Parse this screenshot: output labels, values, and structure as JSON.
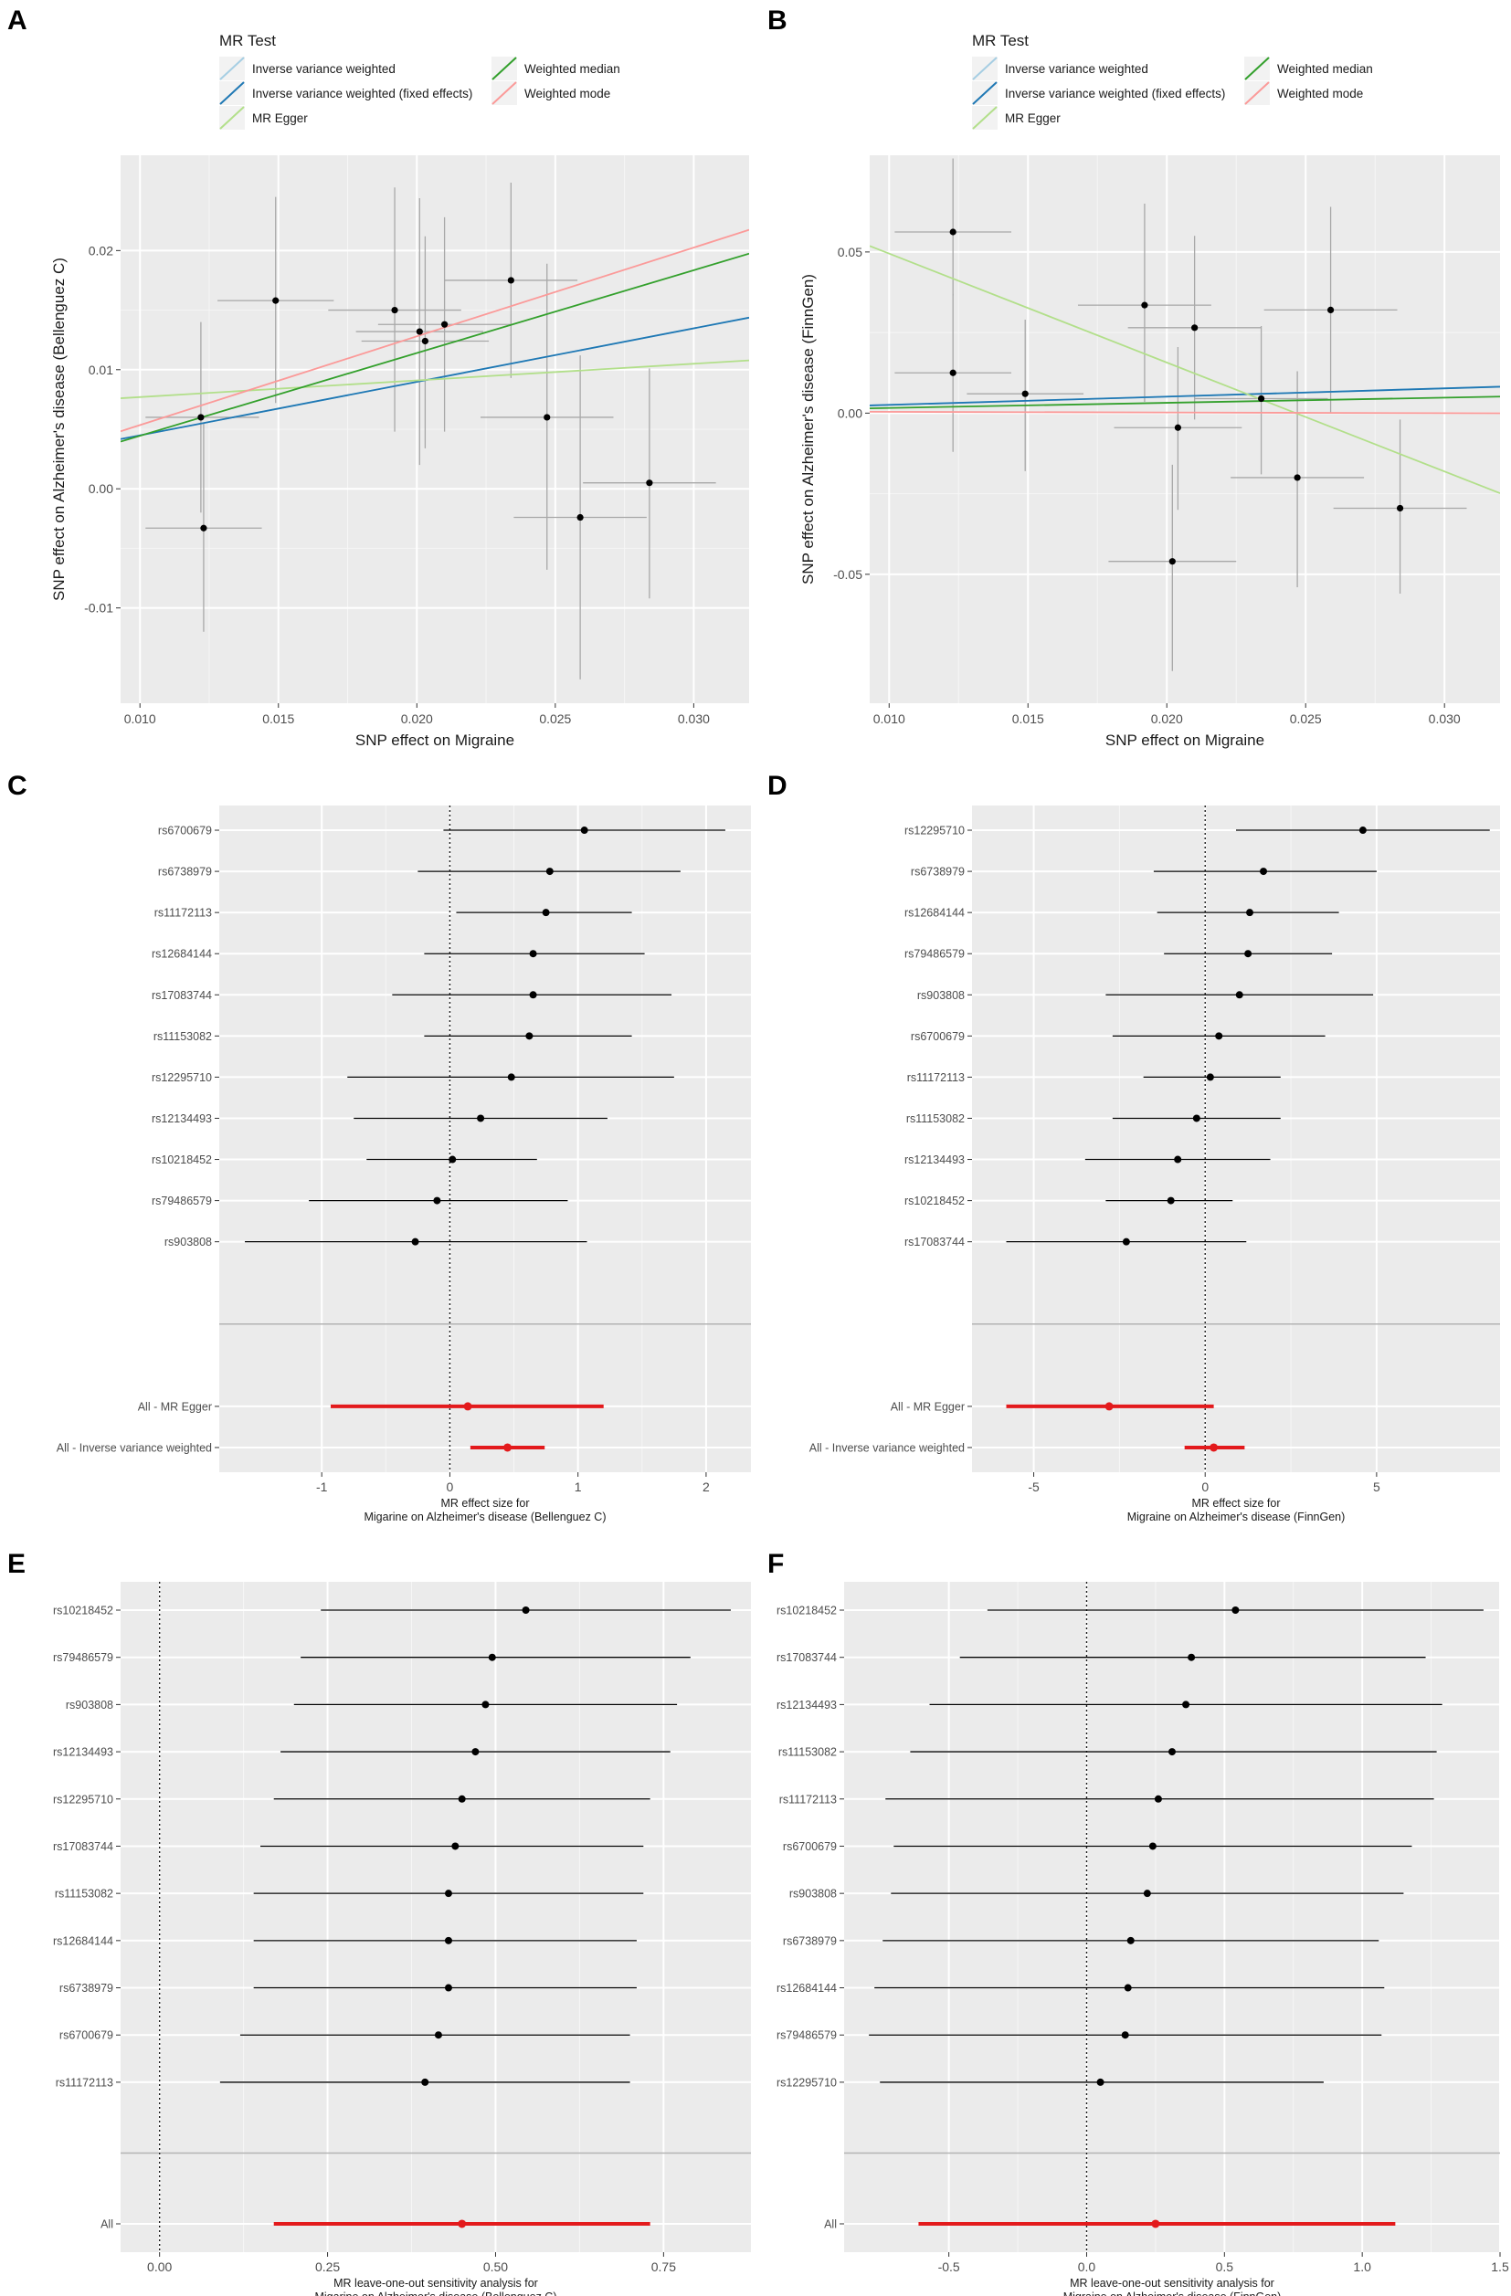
{
  "colors": {
    "panel_bg": "#ebebeb",
    "grid": "#ffffff",
    "ivw": "#a6cee3",
    "ivw_fixed": "#1f78b4",
    "egger": "#b2df8a",
    "wmedian": "#33a02c",
    "wmode": "#fb9a99",
    "point": "#000000",
    "errorbar_scatter": "#a8a8a8",
    "summary": "#e31a1c"
  },
  "legend": {
    "title": "MR Test",
    "entries": [
      {
        "key": "ivw",
        "label": "Inverse variance weighted"
      },
      {
        "key": "ivw_fixed",
        "label": "Inverse variance weighted (fixed effects)"
      },
      {
        "key": "egger",
        "label": "MR Egger"
      },
      {
        "key": "wmedian",
        "label": "Weighted median"
      },
      {
        "key": "wmode",
        "label": "Weighted mode"
      }
    ]
  },
  "chart_data": [
    {
      "panel": "A",
      "type": "scatter",
      "xlabel": "SNP effect on Migraine",
      "ylabel": "SNP effect on Alzheimer's disease (Bellenguez C)",
      "xlim": [
        0.0093,
        0.032
      ],
      "ylim": [
        -0.018,
        0.028
      ],
      "xticks": [
        0.01,
        0.015,
        0.02,
        0.025,
        0.03
      ],
      "xtick_labels": [
        "0.010",
        "0.015",
        "0.020",
        "0.025",
        "0.030"
      ],
      "yticks": [
        -0.01,
        0.0,
        0.01,
        0.02
      ],
      "ytick_labels": [
        "-0.01",
        "0.00",
        "0.01",
        "0.02"
      ],
      "points": [
        {
          "x": 0.0122,
          "y": 0.006,
          "xlo": 0.0102,
          "xhi": 0.0143,
          "ylo": -0.002,
          "yhi": 0.014
        },
        {
          "x": 0.0123,
          "y": -0.0033,
          "xlo": 0.0102,
          "xhi": 0.0144,
          "ylo": -0.012,
          "yhi": 0.0055
        },
        {
          "x": 0.0149,
          "y": 0.0158,
          "xlo": 0.0128,
          "xhi": 0.017,
          "ylo": 0.0072,
          "yhi": 0.0245
        },
        {
          "x": 0.0192,
          "y": 0.015,
          "xlo": 0.0168,
          "xhi": 0.0216,
          "ylo": 0.0048,
          "yhi": 0.0253
        },
        {
          "x": 0.0201,
          "y": 0.0132,
          "xlo": 0.0178,
          "xhi": 0.0224,
          "ylo": 0.002,
          "yhi": 0.0244
        },
        {
          "x": 0.0203,
          "y": 0.0124,
          "xlo": 0.018,
          "xhi": 0.0226,
          "ylo": 0.0034,
          "yhi": 0.0212
        },
        {
          "x": 0.021,
          "y": 0.0138,
          "xlo": 0.0186,
          "xhi": 0.0234,
          "ylo": 0.0048,
          "yhi": 0.0228
        },
        {
          "x": 0.0234,
          "y": 0.0175,
          "xlo": 0.021,
          "xhi": 0.0258,
          "ylo": 0.0093,
          "yhi": 0.0257
        },
        {
          "x": 0.0247,
          "y": 0.006,
          "xlo": 0.0223,
          "xhi": 0.0271,
          "ylo": -0.0068,
          "yhi": 0.0189
        },
        {
          "x": 0.0259,
          "y": -0.0024,
          "xlo": 0.0235,
          "xhi": 0.0283,
          "ylo": -0.016,
          "yhi": 0.0112
        },
        {
          "x": 0.0284,
          "y": 0.0005,
          "xlo": 0.026,
          "xhi": 0.0308,
          "ylo": -0.0092,
          "yhi": 0.0101
        }
      ],
      "lines": [
        {
          "key": "ivw",
          "intercept": 0.0,
          "slope": 0.449
        },
        {
          "key": "ivw_fixed",
          "intercept": 0.0,
          "slope": 0.449
        },
        {
          "key": "egger",
          "intercept": 0.0063,
          "slope": 0.14
        },
        {
          "key": "wmedian",
          "intercept": -0.0025,
          "slope": 0.695
        },
        {
          "key": "wmode",
          "intercept": -0.0021,
          "slope": 0.745
        }
      ]
    },
    {
      "panel": "B",
      "type": "scatter",
      "xlabel": "SNP effect on Migraine",
      "ylabel": "SNP effect on  Alzheimer's disease (FinnGen)",
      "xlim": [
        0.0093,
        0.032
      ],
      "ylim": [
        -0.09,
        0.08
      ],
      "xticks": [
        0.01,
        0.015,
        0.02,
        0.025,
        0.03
      ],
      "xtick_labels": [
        "0.010",
        "0.015",
        "0.020",
        "0.025",
        "0.030"
      ],
      "yticks": [
        -0.05,
        0.0,
        0.05
      ],
      "ytick_labels": [
        "-0.05",
        "0.00",
        "0.05"
      ],
      "points": [
        {
          "x": 0.0123,
          "y": 0.0562,
          "xlo": 0.0102,
          "xhi": 0.0144,
          "ylo": 0.0365,
          "yhi": 0.079
        },
        {
          "x": 0.0123,
          "y": 0.0125,
          "xlo": 0.0102,
          "xhi": 0.0144,
          "ylo": -0.012,
          "yhi": 0.037
        },
        {
          "x": 0.0149,
          "y": 0.006,
          "xlo": 0.0128,
          "xhi": 0.017,
          "ylo": -0.018,
          "yhi": 0.029
        },
        {
          "x": 0.0192,
          "y": 0.0335,
          "xlo": 0.0168,
          "xhi": 0.0216,
          "ylo": 0.0035,
          "yhi": 0.065
        },
        {
          "x": 0.0202,
          "y": -0.046,
          "xlo": 0.0179,
          "xhi": 0.0225,
          "ylo": -0.08,
          "yhi": -0.016
        },
        {
          "x": 0.0204,
          "y": -0.0045,
          "xlo": 0.0181,
          "xhi": 0.0227,
          "ylo": -0.03,
          "yhi": 0.0205
        },
        {
          "x": 0.021,
          "y": 0.0265,
          "xlo": 0.0186,
          "xhi": 0.0234,
          "ylo": -0.002,
          "yhi": 0.055
        },
        {
          "x": 0.0234,
          "y": 0.0045,
          "xlo": 0.021,
          "xhi": 0.0258,
          "ylo": -0.019,
          "yhi": 0.027
        },
        {
          "x": 0.0247,
          "y": -0.02,
          "xlo": 0.0223,
          "xhi": 0.0271,
          "ylo": -0.054,
          "yhi": 0.013
        },
        {
          "x": 0.0259,
          "y": 0.032,
          "xlo": 0.0235,
          "xhi": 0.0283,
          "ylo": 0.0,
          "yhi": 0.064
        },
        {
          "x": 0.0284,
          "y": -0.0295,
          "xlo": 0.026,
          "xhi": 0.0308,
          "ylo": -0.056,
          "yhi": -0.002
        }
      ],
      "lines": [
        {
          "key": "ivw",
          "intercept": 0.0,
          "slope": 0.256
        },
        {
          "key": "ivw_fixed",
          "intercept": 0.0,
          "slope": 0.256
        },
        {
          "key": "egger",
          "intercept": 0.0833,
          "slope": -3.38
        },
        {
          "key": "wmedian",
          "intercept": 0.0,
          "slope": 0.16
        },
        {
          "key": "wmode",
          "intercept": 0.0006,
          "slope": -0.02
        }
      ]
    },
    {
      "panel": "C",
      "type": "forest",
      "xlabel": [
        "MR effect size for",
        "Migarine on Alzheimer's disease (Bellenguez C)"
      ],
      "xlim": [
        -1.8,
        2.35
      ],
      "xticks": [
        -1,
        0,
        1,
        2
      ],
      "xtick_labels": [
        "-1",
        "0",
        "1",
        "2"
      ],
      "snps": [
        {
          "label": "rs6700679",
          "b": 1.05,
          "lo": -0.05,
          "hi": 2.15
        },
        {
          "label": "rs6738979",
          "b": 0.78,
          "lo": -0.25,
          "hi": 1.8
        },
        {
          "label": "rs11172113",
          "b": 0.75,
          "lo": 0.05,
          "hi": 1.42
        },
        {
          "label": "rs12684144",
          "b": 0.65,
          "lo": -0.2,
          "hi": 1.52
        },
        {
          "label": "rs17083744",
          "b": 0.65,
          "lo": -0.45,
          "hi": 1.73
        },
        {
          "label": "rs11153082",
          "b": 0.62,
          "lo": -0.2,
          "hi": 1.42
        },
        {
          "label": "rs12295710",
          "b": 0.48,
          "lo": -0.8,
          "hi": 1.75
        },
        {
          "label": "rs12134493",
          "b": 0.24,
          "lo": -0.75,
          "hi": 1.23
        },
        {
          "label": "rs10218452",
          "b": 0.02,
          "lo": -0.65,
          "hi": 0.68
        },
        {
          "label": "rs79486579",
          "b": -0.1,
          "lo": -1.1,
          "hi": 0.92
        },
        {
          "label": "rs903808",
          "b": -0.27,
          "lo": -1.6,
          "hi": 1.07
        }
      ],
      "summary": [
        {
          "label": "All - MR Egger",
          "b": 0.14,
          "lo": -0.93,
          "hi": 1.2
        },
        {
          "label": "All - Inverse variance weighted",
          "b": 0.45,
          "lo": 0.16,
          "hi": 0.74
        }
      ]
    },
    {
      "panel": "D",
      "type": "forest",
      "xlabel": [
        "MR effect size for",
        "Migraine on Alzheimer's disease (FinnGen)"
      ],
      "xlim": [
        -6.8,
        8.6
      ],
      "xticks": [
        -5,
        0,
        5
      ],
      "xtick_labels": [
        "-5",
        "0",
        "5"
      ],
      "snps": [
        {
          "label": "rs12295710",
          "b": 4.6,
          "lo": 0.9,
          "hi": 8.3
        },
        {
          "label": "rs6738979",
          "b": 1.7,
          "lo": -1.5,
          "hi": 5.0
        },
        {
          "label": "rs12684144",
          "b": 1.3,
          "lo": -1.4,
          "hi": 3.9
        },
        {
          "label": "rs79486579",
          "b": 1.25,
          "lo": -1.2,
          "hi": 3.7
        },
        {
          "label": "rs903808",
          "b": 1.0,
          "lo": -2.9,
          "hi": 4.9
        },
        {
          "label": "rs6700679",
          "b": 0.4,
          "lo": -2.7,
          "hi": 3.5
        },
        {
          "label": "rs11172113",
          "b": 0.15,
          "lo": -1.8,
          "hi": 2.2
        },
        {
          "label": "rs11153082",
          "b": -0.25,
          "lo": -2.7,
          "hi": 2.2
        },
        {
          "label": "rs12134493",
          "b": -0.8,
          "lo": -3.5,
          "hi": 1.9
        },
        {
          "label": "rs10218452",
          "b": -1.0,
          "lo": -2.9,
          "hi": 0.8
        },
        {
          "label": "rs17083744",
          "b": -2.3,
          "lo": -5.8,
          "hi": 1.2
        }
      ],
      "summary": [
        {
          "label": "All - MR Egger",
          "b": -2.8,
          "lo": -5.8,
          "hi": 0.25
        },
        {
          "label": "All - Inverse variance weighted",
          "b": 0.25,
          "lo": -0.6,
          "hi": 1.15
        }
      ]
    },
    {
      "panel": "E",
      "type": "forest",
      "xlabel": [
        "MR leave-one-out sensitivity analysis for",
        "Migarine on Alzheimer's disease (Bellenguez C)"
      ],
      "xlim": [
        -0.058,
        0.88
      ],
      "xticks": [
        0.0,
        0.25,
        0.5,
        0.75
      ],
      "xtick_labels": [
        "0.00",
        "0.25",
        "0.50",
        "0.75"
      ],
      "snps": [
        {
          "label": "rs10218452",
          "b": 0.545,
          "lo": 0.24,
          "hi": 0.85
        },
        {
          "label": "rs79486579",
          "b": 0.495,
          "lo": 0.21,
          "hi": 0.79
        },
        {
          "label": "rs903808",
          "b": 0.485,
          "lo": 0.2,
          "hi": 0.77
        },
        {
          "label": "rs12134493",
          "b": 0.47,
          "lo": 0.18,
          "hi": 0.76
        },
        {
          "label": "rs12295710",
          "b": 0.45,
          "lo": 0.17,
          "hi": 0.73
        },
        {
          "label": "rs17083744",
          "b": 0.44,
          "lo": 0.15,
          "hi": 0.72
        },
        {
          "label": "rs11153082",
          "b": 0.43,
          "lo": 0.14,
          "hi": 0.72
        },
        {
          "label": "rs12684144",
          "b": 0.43,
          "lo": 0.14,
          "hi": 0.71
        },
        {
          "label": "rs6738979",
          "b": 0.43,
          "lo": 0.14,
          "hi": 0.71
        },
        {
          "label": "rs6700679",
          "b": 0.415,
          "lo": 0.12,
          "hi": 0.7
        },
        {
          "label": "rs11172113",
          "b": 0.395,
          "lo": 0.09,
          "hi": 0.7
        }
      ],
      "summary": [
        {
          "label": "All",
          "b": 0.45,
          "lo": 0.17,
          "hi": 0.73
        }
      ]
    },
    {
      "panel": "F",
      "type": "forest",
      "xlabel": [
        "MR leave-one-out sensitivity analysis for",
        "Migraine on Alzheimer's disease (FinnGen)"
      ],
      "xlim": [
        -0.88,
        1.5
      ],
      "xticks": [
        -0.5,
        0.0,
        0.5,
        1.0,
        1.5
      ],
      "xtick_labels": [
        "-0.5",
        "0.0",
        "0.5",
        "1.0",
        "1.5"
      ],
      "snps": [
        {
          "label": "rs10218452",
          "b": 0.54,
          "lo": -0.36,
          "hi": 1.44
        },
        {
          "label": "rs17083744",
          "b": 0.38,
          "lo": -0.46,
          "hi": 1.23
        },
        {
          "label": "rs12134493",
          "b": 0.36,
          "lo": -0.57,
          "hi": 1.29
        },
        {
          "label": "rs11153082",
          "b": 0.31,
          "lo": -0.64,
          "hi": 1.27
        },
        {
          "label": "rs11172113",
          "b": 0.26,
          "lo": -0.73,
          "hi": 1.26
        },
        {
          "label": "rs6700679",
          "b": 0.24,
          "lo": -0.7,
          "hi": 1.18
        },
        {
          "label": "rs903808",
          "b": 0.22,
          "lo": -0.71,
          "hi": 1.15
        },
        {
          "label": "rs6738979",
          "b": 0.16,
          "lo": -0.74,
          "hi": 1.06
        },
        {
          "label": "rs12684144",
          "b": 0.15,
          "lo": -0.77,
          "hi": 1.08
        },
        {
          "label": "rs79486579",
          "b": 0.14,
          "lo": -0.79,
          "hi": 1.07
        },
        {
          "label": "rs12295710",
          "b": 0.05,
          "lo": -0.75,
          "hi": 0.86
        }
      ],
      "summary": [
        {
          "label": "All",
          "b": 0.25,
          "lo": -0.61,
          "hi": 1.12
        }
      ]
    }
  ]
}
